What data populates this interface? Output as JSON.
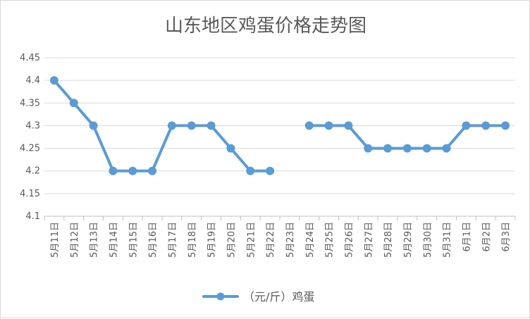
{
  "chart_data": {
    "type": "line",
    "title": "山东地区鸡蛋价格走势图",
    "xlabel": "",
    "ylabel": "",
    "ylim": [
      4.1,
      4.45
    ],
    "yticks": [
      "4.1",
      "4.15",
      "4.2",
      "4.25",
      "4.3",
      "4.35",
      "4.4",
      "4.45"
    ],
    "grid": true,
    "legend_position": "bottom",
    "categories": [
      "5月11日",
      "5月12日",
      "5月13日",
      "5月14日",
      "5月15日",
      "5月16日",
      "5月17日",
      "5月18日",
      "5月19日",
      "5月20日",
      "5月21日",
      "5月22日",
      "5月23日",
      "5月24日",
      "5月25日",
      "5月26日",
      "5月27日",
      "5月28日",
      "5月29日",
      "5月30日",
      "5月31日",
      "6月1日",
      "6月2日",
      "6月3日"
    ],
    "series": [
      {
        "name": "（元/斤）鸡蛋",
        "color": "#5b9bd5",
        "values": [
          4.4,
          4.35,
          4.3,
          4.2,
          4.2,
          4.2,
          4.3,
          4.3,
          4.3,
          4.25,
          4.2,
          4.2,
          null,
          4.3,
          4.3,
          4.3,
          4.25,
          4.25,
          4.25,
          4.25,
          4.25,
          4.3,
          4.3,
          4.3
        ]
      }
    ]
  }
}
